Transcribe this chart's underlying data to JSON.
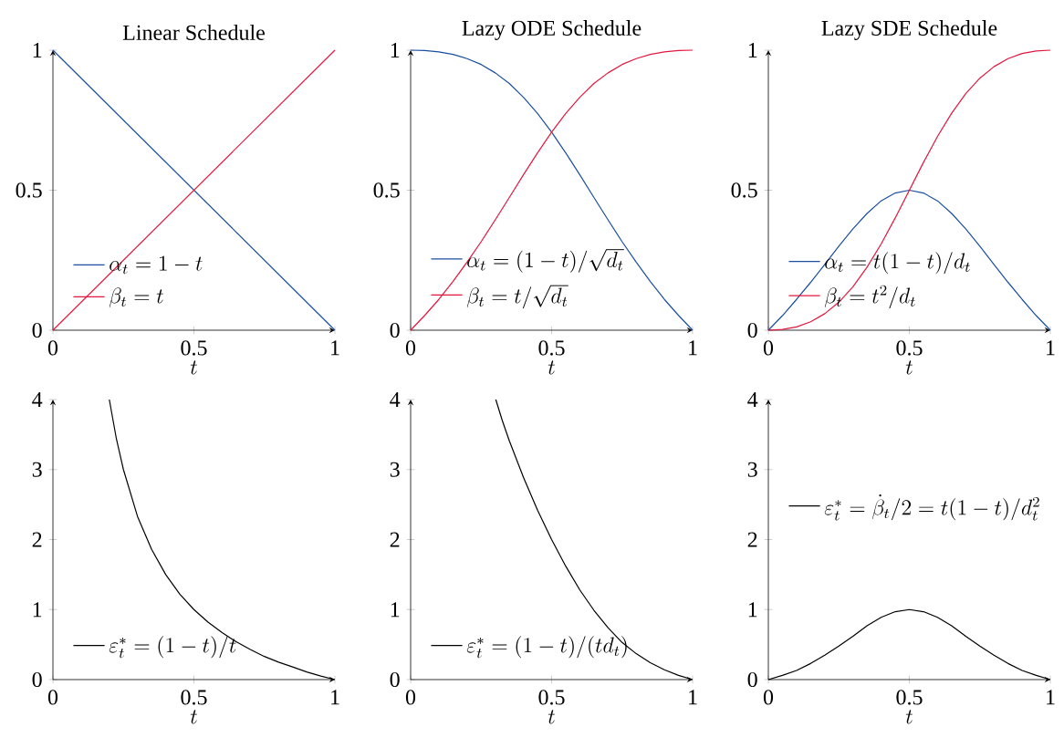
{
  "chart_data": [
    {
      "type": "line",
      "title": "Linear Schedule",
      "xlabel": "t",
      "xlim": [
        0,
        1
      ],
      "ylim": [
        0,
        1
      ],
      "xticks": [
        0,
        0.5,
        1
      ],
      "yticks": [
        0,
        0.5,
        1
      ],
      "legend": "bottom left",
      "series": [
        {
          "name": "\\alpha_t = 1 - t",
          "color": "#1a4fa0",
          "x": [
            0,
            1
          ],
          "values": [
            1,
            0
          ]
        },
        {
          "name": "\\beta_t = t",
          "color": "#e3173e",
          "x": [
            0,
            1
          ],
          "values": [
            0,
            1
          ]
        }
      ]
    },
    {
      "type": "line",
      "title": "Lazy ODE Schedule",
      "xlabel": "t",
      "xlim": [
        0,
        1
      ],
      "ylim": [
        0,
        1
      ],
      "xticks": [
        0,
        0.5,
        1
      ],
      "yticks": [
        0,
        0.5,
        1
      ],
      "legend": "bottom left",
      "series": [
        {
          "name": "\\alpha_t = (1-t)/\\sqrt{d_t}",
          "color": "#1a4fa0",
          "x": [
            0,
            0.05,
            0.1,
            0.15,
            0.2,
            0.25,
            0.3,
            0.35,
            0.4,
            0.45,
            0.5,
            0.55,
            0.6,
            0.65,
            0.7,
            0.75,
            0.8,
            0.85,
            0.9,
            0.95,
            1
          ],
          "values": [
            1,
            0.999,
            0.994,
            0.985,
            0.97,
            0.949,
            0.919,
            0.881,
            0.832,
            0.774,
            0.707,
            0.633,
            0.555,
            0.474,
            0.394,
            0.316,
            0.243,
            0.174,
            0.11,
            0.053,
            0
          ]
        },
        {
          "name": "\\beta_t = t/\\sqrt{d_t}",
          "color": "#e3173e",
          "x": [
            0,
            0.05,
            0.1,
            0.15,
            0.2,
            0.25,
            0.3,
            0.35,
            0.4,
            0.45,
            0.5,
            0.55,
            0.6,
            0.65,
            0.7,
            0.75,
            0.8,
            0.85,
            0.9,
            0.95,
            1
          ],
          "values": [
            0,
            0.053,
            0.11,
            0.174,
            0.243,
            0.316,
            0.394,
            0.474,
            0.555,
            0.633,
            0.707,
            0.774,
            0.832,
            0.881,
            0.919,
            0.949,
            0.97,
            0.985,
            0.994,
            0.999,
            1
          ]
        }
      ]
    },
    {
      "type": "line",
      "title": "Lazy SDE Schedule",
      "xlabel": "t",
      "xlim": [
        0,
        1
      ],
      "ylim": [
        0,
        1
      ],
      "xticks": [
        0,
        0.5,
        1
      ],
      "yticks": [
        0,
        0.5,
        1
      ],
      "legend": "bottom left",
      "series": [
        {
          "name": "\\alpha_t = t(1-t)/d_t",
          "color": "#1a4fa0",
          "x": [
            0,
            0.05,
            0.1,
            0.15,
            0.2,
            0.25,
            0.3,
            0.35,
            0.4,
            0.45,
            0.5,
            0.55,
            0.6,
            0.65,
            0.7,
            0.75,
            0.8,
            0.85,
            0.9,
            0.95,
            1
          ],
          "values": [
            0,
            0.052,
            0.11,
            0.171,
            0.235,
            0.3,
            0.362,
            0.417,
            0.462,
            0.49,
            0.5,
            0.49,
            0.462,
            0.417,
            0.362,
            0.3,
            0.235,
            0.171,
            0.11,
            0.052,
            0
          ]
        },
        {
          "name": "\\beta_t = t^2/d_t",
          "color": "#e3173e",
          "x": [
            0,
            0.05,
            0.1,
            0.15,
            0.2,
            0.25,
            0.3,
            0.35,
            0.4,
            0.45,
            0.5,
            0.55,
            0.6,
            0.65,
            0.7,
            0.75,
            0.8,
            0.85,
            0.9,
            0.95,
            1
          ],
          "values": [
            0,
            0.003,
            0.012,
            0.03,
            0.059,
            0.1,
            0.155,
            0.225,
            0.308,
            0.401,
            0.5,
            0.599,
            0.692,
            0.775,
            0.845,
            0.9,
            0.941,
            0.97,
            0.988,
            0.997,
            1
          ]
        }
      ]
    },
    {
      "type": "line",
      "xlabel": "t",
      "xlim": [
        0,
        1
      ],
      "ylim": [
        0,
        4
      ],
      "xticks": [
        0,
        0.5,
        1
      ],
      "yticks": [
        0,
        1,
        2,
        3,
        4
      ],
      "legend": "bottom left",
      "series": [
        {
          "name": "\\varepsilon^*_t = (1-t)/t",
          "color": "#000000",
          "x": [
            0.2,
            0.225,
            0.25,
            0.3,
            0.35,
            0.4,
            0.45,
            0.5,
            0.55,
            0.6,
            0.65,
            0.7,
            0.75,
            0.8,
            0.85,
            0.9,
            0.95,
            1
          ],
          "values": [
            4,
            3.44,
            3,
            2.33,
            1.86,
            1.5,
            1.22,
            1,
            0.82,
            0.67,
            0.54,
            0.43,
            0.33,
            0.25,
            0.18,
            0.11,
            0.05,
            0
          ]
        }
      ]
    },
    {
      "type": "line",
      "xlabel": "t",
      "xlim": [
        0,
        1
      ],
      "ylim": [
        0,
        4
      ],
      "xticks": [
        0,
        0.5,
        1
      ],
      "yticks": [
        0,
        1,
        2,
        3,
        4
      ],
      "legend": "bottom left",
      "series": [
        {
          "name": "\\varepsilon^*_t = (1-t)/(t d_t)",
          "color": "#000000",
          "x": [
            0.302,
            0.325,
            0.35,
            0.4,
            0.45,
            0.5,
            0.55,
            0.6,
            0.65,
            0.7,
            0.75,
            0.8,
            0.85,
            0.9,
            0.95,
            1
          ],
          "values": [
            4,
            3.7,
            3.41,
            2.89,
            2.42,
            2,
            1.62,
            1.28,
            0.99,
            0.74,
            0.53,
            0.37,
            0.24,
            0.14,
            0.06,
            0
          ]
        }
      ]
    },
    {
      "type": "line",
      "xlabel": "t",
      "xlim": [
        0,
        1
      ],
      "ylim": [
        0,
        4
      ],
      "xticks": [
        0,
        0.5,
        1
      ],
      "yticks": [
        0,
        1,
        2,
        3,
        4
      ],
      "legend": "left",
      "series": [
        {
          "name": "\\varepsilon^*_t = \\dot{\\beta}_t/2 = t(1-t)/d_t^2",
          "color": "#000000",
          "x": [
            0,
            0.05,
            0.1,
            0.15,
            0.2,
            0.25,
            0.3,
            0.35,
            0.4,
            0.45,
            0.5,
            0.55,
            0.6,
            0.65,
            0.7,
            0.75,
            0.8,
            0.85,
            0.9,
            0.95,
            1
          ],
          "values": [
            0,
            0.06,
            0.13,
            0.23,
            0.35,
            0.48,
            0.62,
            0.77,
            0.89,
            0.97,
            1,
            0.97,
            0.89,
            0.77,
            0.62,
            0.48,
            0.35,
            0.23,
            0.13,
            0.06,
            0
          ]
        }
      ]
    }
  ]
}
